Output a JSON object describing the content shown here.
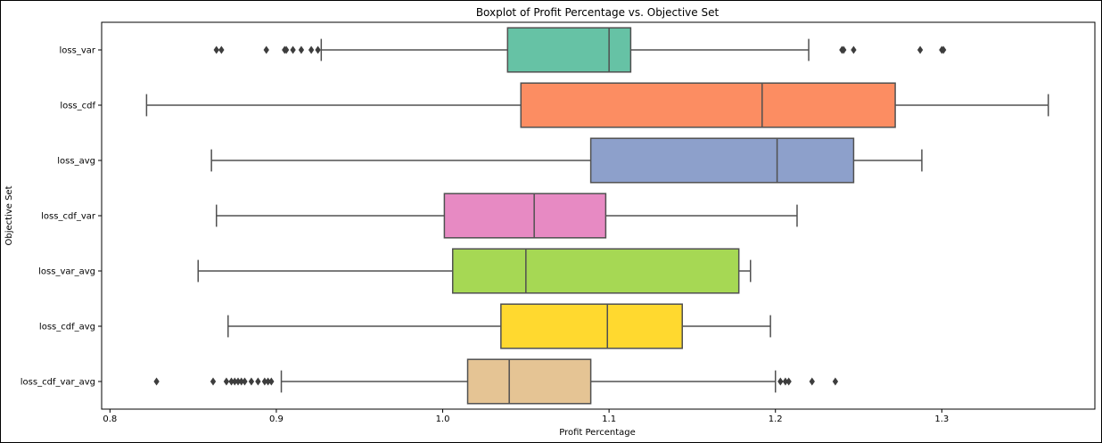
{
  "chart_data": {
    "type": "boxplot",
    "title": "Boxplot of Profit Percentage vs. Objective Set",
    "xlabel": "Profit Percentage",
    "ylabel": "Objective Set",
    "xlim": [
      0.795,
      1.392
    ],
    "xticks": [
      0.8,
      0.9,
      1.0,
      1.1,
      1.2,
      1.3
    ],
    "xtick_labels": [
      "0.8",
      "0.9",
      "1.0",
      "1.1",
      "1.2",
      "1.3"
    ],
    "orientation": "horizontal",
    "grid": false,
    "categories": [
      "loss_var",
      "loss_cdf",
      "loss_avg",
      "loss_cdf_var",
      "loss_var_avg",
      "loss_cdf_avg",
      "loss_cdf_var_avg"
    ],
    "boxes": [
      {
        "name": "loss_var",
        "color": "#66c2a5",
        "whisker_low": 0.927,
        "q1": 1.039,
        "median": 1.1,
        "q3": 1.113,
        "whisker_high": 1.22,
        "outliers": [
          0.864,
          0.867,
          0.894,
          0.905,
          0.906,
          0.91,
          0.915,
          0.921,
          0.925,
          1.24,
          1.241,
          1.247,
          1.287,
          1.3,
          1.301
        ]
      },
      {
        "name": "loss_cdf",
        "color": "#fc8d62",
        "whisker_low": 0.822,
        "q1": 1.047,
        "median": 1.192,
        "q3": 1.272,
        "whisker_high": 1.364,
        "outliers": []
      },
      {
        "name": "loss_avg",
        "color": "#8da0cb",
        "whisker_low": 0.861,
        "q1": 1.089,
        "median": 1.201,
        "q3": 1.247,
        "whisker_high": 1.288,
        "outliers": []
      },
      {
        "name": "loss_cdf_var",
        "color": "#e78ac3",
        "whisker_low": 0.864,
        "q1": 1.001,
        "median": 1.055,
        "q3": 1.098,
        "whisker_high": 1.213,
        "outliers": []
      },
      {
        "name": "loss_var_avg",
        "color": "#a6d854",
        "whisker_low": 0.853,
        "q1": 1.006,
        "median": 1.05,
        "q3": 1.178,
        "whisker_high": 1.185,
        "outliers": []
      },
      {
        "name": "loss_cdf_avg",
        "color": "#ffd92f",
        "whisker_low": 0.871,
        "q1": 1.035,
        "median": 1.099,
        "q3": 1.144,
        "whisker_high": 1.197,
        "outliers": []
      },
      {
        "name": "loss_cdf_var_avg",
        "color": "#e5c494",
        "whisker_low": 0.903,
        "q1": 1.015,
        "median": 1.04,
        "q3": 1.089,
        "whisker_high": 1.2,
        "outliers": [
          0.828,
          0.862,
          0.87,
          0.873,
          0.875,
          0.877,
          0.879,
          0.881,
          0.885,
          0.889,
          0.893,
          0.895,
          0.897,
          1.203,
          1.206,
          1.208,
          1.222,
          1.236
        ]
      }
    ]
  }
}
